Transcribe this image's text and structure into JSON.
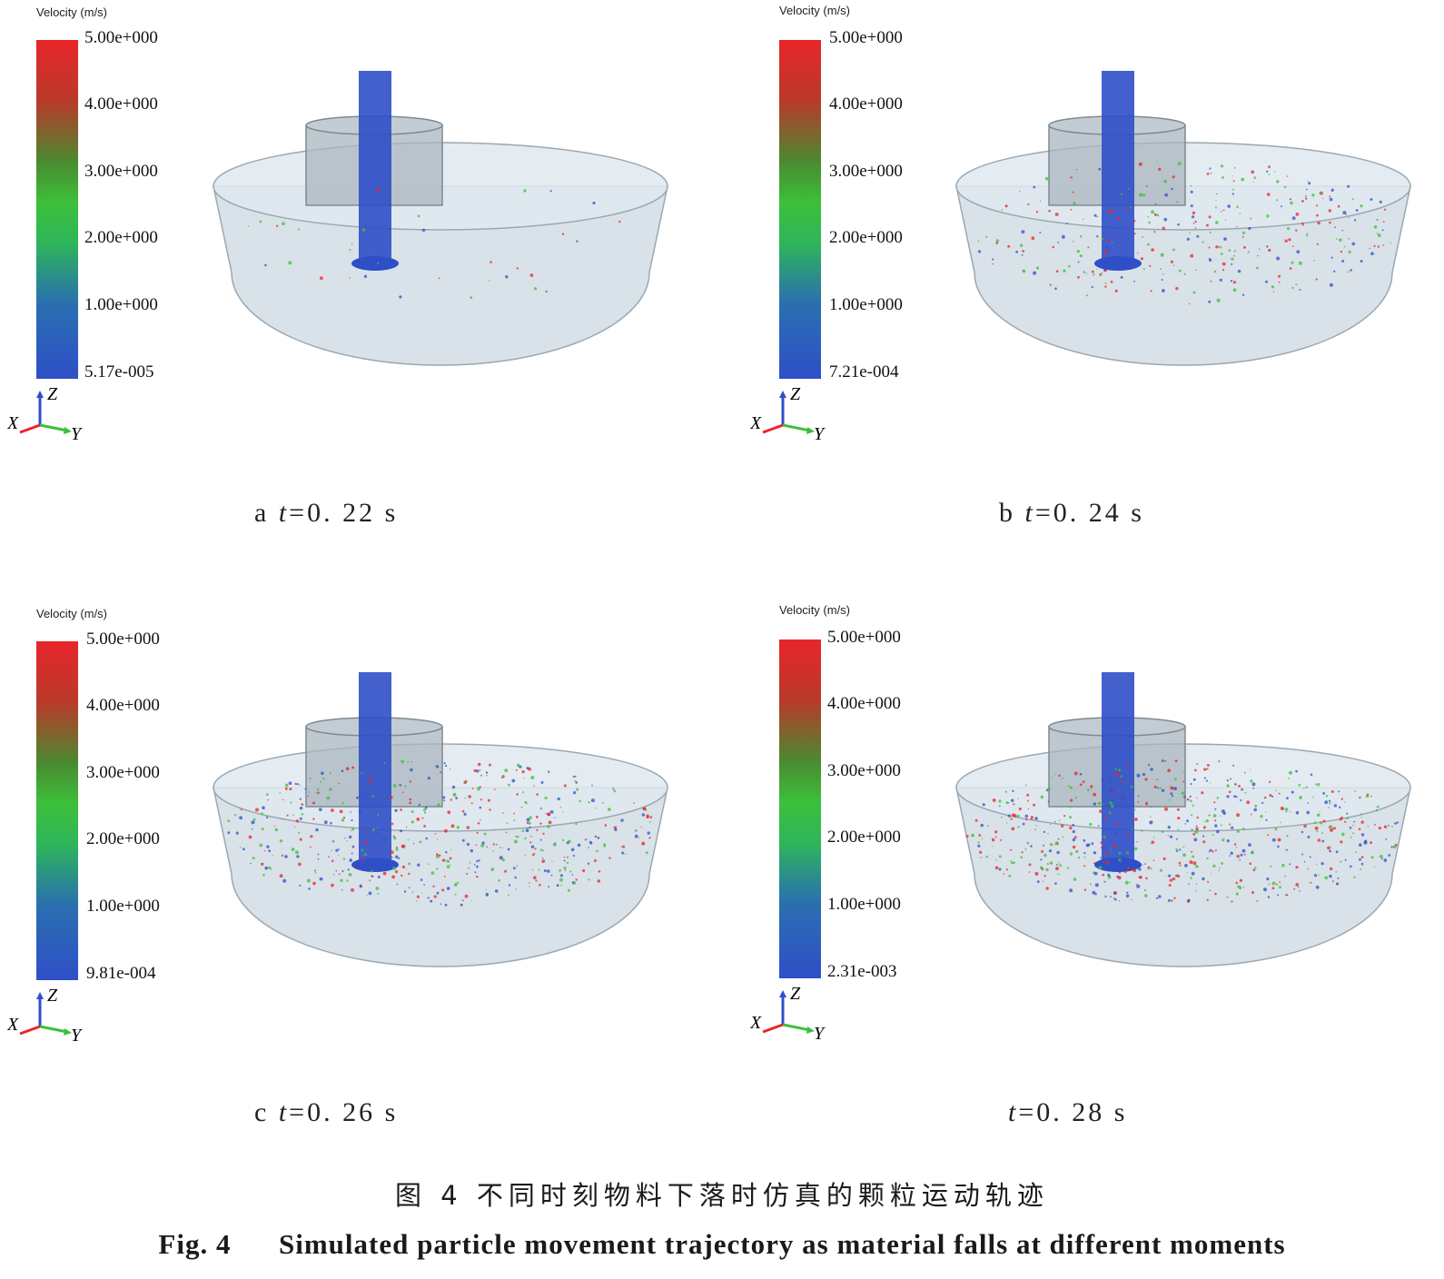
{
  "colorbar": {
    "title": "Velocity (m/s)",
    "ticks": [
      "5.00e+000",
      "4.00e+000",
      "3.00e+000",
      "2.00e+000",
      "1.00e+000"
    ],
    "colors": {
      "max": "#e8262a",
      "mid": "#3cc03a",
      "min": "#2f4fc8"
    }
  },
  "axes": {
    "z": "Z",
    "x": "X",
    "y": "Y"
  },
  "panels": [
    {
      "letter": "a",
      "time_var": "t",
      "time_value": "=0. 22  s",
      "min_value": "5.17e-005",
      "particle_spread": 0.05
    },
    {
      "letter": "b",
      "time_var": "t",
      "time_value": "=0. 24  s",
      "min_value": "7.21e-004",
      "particle_spread": 0.45
    },
    {
      "letter": "c",
      "time_var": "t",
      "time_value": "=0. 26  s",
      "min_value": "9.81e-004",
      "particle_spread": 0.75
    },
    {
      "letter": "",
      "time_var": "t",
      "time_value": "=0. 28  s",
      "min_value": "2.31e-003",
      "particle_spread": 0.9
    }
  ],
  "caption": {
    "cn": "图 4   不同时刻物料下落时仿真的颗粒运动轨迹",
    "en_prefix": "Fig. 4",
    "en_text": "Simulated particle movement trajectory as material falls at different moments"
  }
}
